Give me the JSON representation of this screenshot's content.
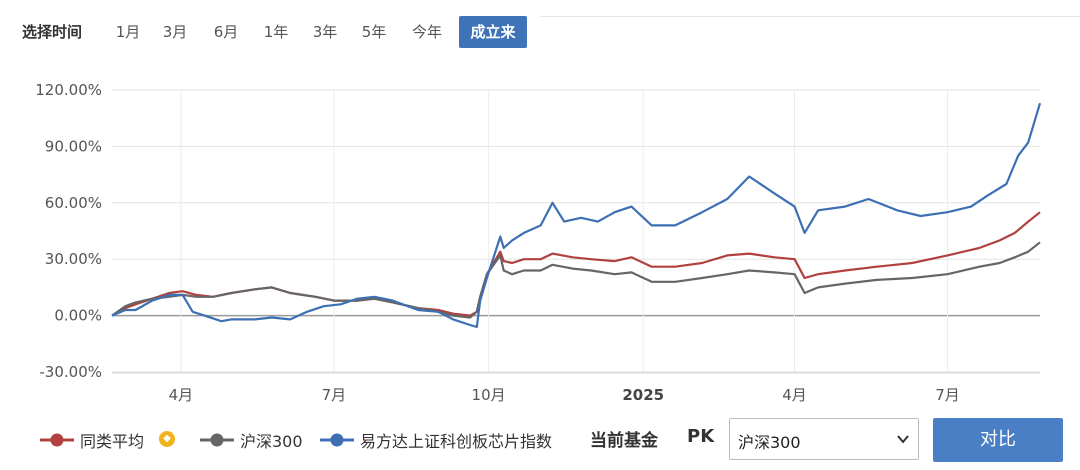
{
  "range_selector": {
    "label": "选择时间",
    "options": [
      "1月",
      "3月",
      "6月",
      "1年",
      "3年",
      "5年",
      "今年",
      "成立来"
    ],
    "active_index": 7
  },
  "chart_data": {
    "type": "line",
    "y_ticks": [
      "120.00%",
      "90.00%",
      "60.00%",
      "30.00%",
      "0.00%",
      "-30.00%"
    ],
    "ylim": [
      -30,
      120
    ],
    "x_ticks": [
      "4月",
      "7月",
      "10月",
      "2025",
      "4月",
      "7月"
    ],
    "x_tick_dates": [
      "2024-04-01",
      "2024-07-01",
      "2024-10-01",
      "2025-01-01",
      "2025-04-01",
      "2025-07-01"
    ],
    "xlim": [
      "2024-02-20",
      "2025-08-25"
    ],
    "grid": true,
    "legend_position": "bottom",
    "series": [
      {
        "name": "同类平均",
        "color": "#b0413e",
        "points": [
          [
            "2024-02-20",
            0
          ],
          [
            "2024-02-28",
            4
          ],
          [
            "2024-03-05",
            6
          ],
          [
            "2024-03-15",
            9
          ],
          [
            "2024-03-25",
            12
          ],
          [
            "2024-04-02",
            13
          ],
          [
            "2024-04-10",
            11
          ],
          [
            "2024-04-20",
            10
          ],
          [
            "2024-05-01",
            12
          ],
          [
            "2024-05-15",
            14
          ],
          [
            "2024-05-25",
            15
          ],
          [
            "2024-06-05",
            12
          ],
          [
            "2024-06-20",
            10
          ],
          [
            "2024-07-01",
            8
          ],
          [
            "2024-07-15",
            8
          ],
          [
            "2024-07-25",
            9
          ],
          [
            "2024-08-05",
            7
          ],
          [
            "2024-08-20",
            4
          ],
          [
            "2024-09-01",
            3
          ],
          [
            "2024-09-10",
            1
          ],
          [
            "2024-09-20",
            0
          ],
          [
            "2024-09-24",
            2
          ],
          [
            "2024-09-26",
            10
          ],
          [
            "2024-09-30",
            22
          ],
          [
            "2024-10-08",
            34
          ],
          [
            "2024-10-10",
            29
          ],
          [
            "2024-10-15",
            28
          ],
          [
            "2024-10-22",
            30
          ],
          [
            "2024-11-01",
            30
          ],
          [
            "2024-11-08",
            33
          ],
          [
            "2024-11-20",
            31
          ],
          [
            "2024-12-01",
            30
          ],
          [
            "2024-12-15",
            29
          ],
          [
            "2024-12-25",
            31
          ],
          [
            "2025-01-06",
            26
          ],
          [
            "2025-01-20",
            26
          ],
          [
            "2025-02-05",
            28
          ],
          [
            "2025-02-20",
            32
          ],
          [
            "2025-03-05",
            33
          ],
          [
            "2025-03-20",
            31
          ],
          [
            "2025-04-01",
            30
          ],
          [
            "2025-04-07",
            20
          ],
          [
            "2025-04-15",
            22
          ],
          [
            "2025-05-01",
            24
          ],
          [
            "2025-05-20",
            26
          ],
          [
            "2025-06-10",
            28
          ],
          [
            "2025-07-01",
            32
          ],
          [
            "2025-07-20",
            36
          ],
          [
            "2025-08-01",
            40
          ],
          [
            "2025-08-10",
            44
          ],
          [
            "2025-08-18",
            50
          ],
          [
            "2025-08-25",
            55
          ]
        ]
      },
      {
        "name": "沪深300",
        "color": "#666666",
        "points": [
          [
            "2024-02-20",
            0
          ],
          [
            "2024-02-28",
            5
          ],
          [
            "2024-03-05",
            7
          ],
          [
            "2024-03-15",
            9
          ],
          [
            "2024-03-25",
            10
          ],
          [
            "2024-04-02",
            11
          ],
          [
            "2024-04-10",
            10
          ],
          [
            "2024-04-20",
            10
          ],
          [
            "2024-05-01",
            12
          ],
          [
            "2024-05-15",
            14
          ],
          [
            "2024-05-25",
            15
          ],
          [
            "2024-06-05",
            12
          ],
          [
            "2024-06-20",
            10
          ],
          [
            "2024-07-01",
            8
          ],
          [
            "2024-07-15",
            8
          ],
          [
            "2024-07-25",
            9
          ],
          [
            "2024-08-05",
            7
          ],
          [
            "2024-08-20",
            4
          ],
          [
            "2024-09-01",
            2
          ],
          [
            "2024-09-10",
            0
          ],
          [
            "2024-09-20",
            -1
          ],
          [
            "2024-09-24",
            2
          ],
          [
            "2024-09-26",
            10
          ],
          [
            "2024-09-30",
            22
          ],
          [
            "2024-10-08",
            32
          ],
          [
            "2024-10-10",
            24
          ],
          [
            "2024-10-15",
            22
          ],
          [
            "2024-10-22",
            24
          ],
          [
            "2024-11-01",
            24
          ],
          [
            "2024-11-08",
            27
          ],
          [
            "2024-11-20",
            25
          ],
          [
            "2024-12-01",
            24
          ],
          [
            "2024-12-15",
            22
          ],
          [
            "2024-12-25",
            23
          ],
          [
            "2025-01-06",
            18
          ],
          [
            "2025-01-20",
            18
          ],
          [
            "2025-02-05",
            20
          ],
          [
            "2025-02-20",
            22
          ],
          [
            "2025-03-05",
            24
          ],
          [
            "2025-03-20",
            23
          ],
          [
            "2025-04-01",
            22
          ],
          [
            "2025-04-07",
            12
          ],
          [
            "2025-04-15",
            15
          ],
          [
            "2025-05-01",
            17
          ],
          [
            "2025-05-20",
            19
          ],
          [
            "2025-06-10",
            20
          ],
          [
            "2025-07-01",
            22
          ],
          [
            "2025-07-20",
            26
          ],
          [
            "2025-08-01",
            28
          ],
          [
            "2025-08-10",
            31
          ],
          [
            "2025-08-18",
            34
          ],
          [
            "2025-08-25",
            39
          ]
        ]
      },
      {
        "name": "易方达上证科创板芯片指数",
        "color": "#3d6fb5",
        "points": [
          [
            "2024-02-20",
            0
          ],
          [
            "2024-02-28",
            3
          ],
          [
            "2024-03-05",
            3
          ],
          [
            "2024-03-15",
            8
          ],
          [
            "2024-03-25",
            11
          ],
          [
            "2024-04-02",
            11
          ],
          [
            "2024-04-08",
            2
          ],
          [
            "2024-04-15",
            0
          ],
          [
            "2024-04-25",
            -3
          ],
          [
            "2024-05-01",
            -2
          ],
          [
            "2024-05-15",
            -2
          ],
          [
            "2024-05-25",
            -1
          ],
          [
            "2024-06-05",
            -2
          ],
          [
            "2024-06-15",
            2
          ],
          [
            "2024-06-25",
            5
          ],
          [
            "2024-07-05",
            6
          ],
          [
            "2024-07-15",
            9
          ],
          [
            "2024-07-25",
            10
          ],
          [
            "2024-08-05",
            8
          ],
          [
            "2024-08-20",
            3
          ],
          [
            "2024-09-01",
            2
          ],
          [
            "2024-09-10",
            -2
          ],
          [
            "2024-09-20",
            -5
          ],
          [
            "2024-09-24",
            -6
          ],
          [
            "2024-09-26",
            8
          ],
          [
            "2024-09-30",
            20
          ],
          [
            "2024-10-08",
            42
          ],
          [
            "2024-10-10",
            36
          ],
          [
            "2024-10-15",
            40
          ],
          [
            "2024-10-22",
            44
          ],
          [
            "2024-11-01",
            48
          ],
          [
            "2024-11-08",
            60
          ],
          [
            "2024-11-15",
            50
          ],
          [
            "2024-11-25",
            52
          ],
          [
            "2024-12-05",
            50
          ],
          [
            "2024-12-15",
            55
          ],
          [
            "2024-12-25",
            58
          ],
          [
            "2025-01-06",
            48
          ],
          [
            "2025-01-20",
            48
          ],
          [
            "2025-02-05",
            55
          ],
          [
            "2025-02-20",
            62
          ],
          [
            "2025-03-05",
            74
          ],
          [
            "2025-03-20",
            65
          ],
          [
            "2025-04-01",
            58
          ],
          [
            "2025-04-07",
            44
          ],
          [
            "2025-04-15",
            56
          ],
          [
            "2025-05-01",
            58
          ],
          [
            "2025-05-15",
            62
          ],
          [
            "2025-06-01",
            56
          ],
          [
            "2025-06-15",
            53
          ],
          [
            "2025-07-01",
            55
          ],
          [
            "2025-07-15",
            58
          ],
          [
            "2025-07-25",
            64
          ],
          [
            "2025-08-05",
            70
          ],
          [
            "2025-08-12",
            85
          ],
          [
            "2025-08-18",
            92
          ],
          [
            "2025-08-25",
            113
          ]
        ]
      }
    ]
  },
  "legend": {
    "items": [
      "同类平均",
      "沪深300",
      "易方达上证科创板芯片指数"
    ]
  },
  "pk_bar": {
    "current_fund_label": "当前基金",
    "pk_label": "PK",
    "select_value": "沪深300",
    "compare_button": "对比"
  }
}
